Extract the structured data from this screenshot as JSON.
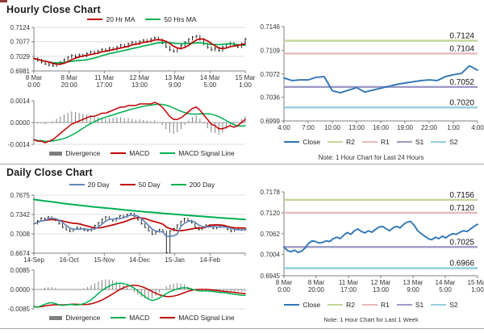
{
  "hourly": {
    "title": "Hourly Close Chart",
    "ma_legend": [
      {
        "label": "20 Hr MA",
        "color": "#c00000"
      },
      {
        "label": "50 Hrs MA",
        "color": "#00b050"
      }
    ],
    "macd_legend": [
      {
        "label": "Divergence",
        "color": "#7f7f7f"
      },
      {
        "label": "MACD",
        "color": "#c00000"
      },
      {
        "label": "MACD Signal Line",
        "color": "#00b050"
      }
    ],
    "pivot_legend": [
      {
        "label": "Close",
        "color": "#2e75b6"
      },
      {
        "label": "R2",
        "color": "#c3d69b"
      },
      {
        "label": "R1",
        "color": "#e6b9b8"
      },
      {
        "label": "S1",
        "color": "#9b9ac6"
      },
      {
        "label": "S2",
        "color": "#93cddd"
      }
    ],
    "pivot_note": "Note: 1 Hour Chart for Last 24 Hours"
  },
  "daily": {
    "title": "Daily Close Chart",
    "ma_legend": [
      {
        "label": "20 Day",
        "color": "#6187b8"
      },
      {
        "label": "50 Day",
        "color": "#c00000"
      },
      {
        "label": "200 Day",
        "color": "#00b050"
      }
    ],
    "macd_legend": [
      {
        "label": "Divergence",
        "color": "#7f7f7f"
      },
      {
        "label": "MACD",
        "color": "#00b050"
      },
      {
        "label": "MACD Signal Line",
        "color": "#c00000"
      }
    ],
    "pivot_legend": [
      {
        "label": "Close",
        "color": "#2e75b6"
      },
      {
        "label": "R2",
        "color": "#c3d69b"
      },
      {
        "label": "R1",
        "color": "#e6b9b8"
      },
      {
        "label": "S1",
        "color": "#9b9ac6"
      },
      {
        "label": "S2",
        "color": "#93cddd"
      }
    ],
    "pivot_note": "Note: 1 Hour Chart for Last 1 Week"
  },
  "chart_data": [
    {
      "id": "hourly-price",
      "type": "price",
      "title": "Hourly Close Chart",
      "yticks": [
        "0.6981",
        "0.7029",
        "0.7077",
        "0.7124"
      ],
      "ylim": [
        0.6981,
        0.7124
      ],
      "x_labels": [
        [
          "8 Mar",
          "0:00"
        ],
        [
          "8 Mar",
          "20:00"
        ],
        [
          "11 Mar",
          "17:00"
        ],
        [
          "12 Mar",
          "13:00"
        ],
        [
          "13 Mar",
          "9:00"
        ],
        [
          "14 Mar",
          "5:00"
        ],
        [
          "15 Mar",
          "1:00"
        ]
      ],
      "close": [
        0.7022,
        0.7016,
        0.701,
        0.7004,
        0.7,
        0.6998,
        0.7004,
        0.701,
        0.7018,
        0.7026,
        0.7032,
        0.7028,
        0.7034,
        0.703,
        0.7038,
        0.7044,
        0.704,
        0.7046,
        0.7052,
        0.7048,
        0.7056,
        0.7052,
        0.706,
        0.7066,
        0.7062,
        0.707,
        0.7075,
        0.707,
        0.7078,
        0.7082,
        0.7078,
        0.7086,
        0.709,
        0.7084,
        0.7072,
        0.706,
        0.705,
        0.7045,
        0.7055,
        0.7065,
        0.7075,
        0.7085,
        0.7092,
        0.7095,
        0.7085,
        0.707,
        0.7058,
        0.705,
        0.7056,
        0.7048,
        0.706,
        0.7068,
        0.7072,
        0.7065,
        0.706,
        0.707,
        0.7086
      ],
      "ma_windows": [
        5,
        13
      ],
      "ma_colors": [
        "#c00000",
        "#00b050"
      ],
      "wick": 0.0004
    },
    {
      "id": "hourly-macd",
      "type": "macd",
      "yticks": [
        "-0.0014",
        "0.0000",
        "0.0014"
      ],
      "ylim": [
        -0.0014,
        0.0014
      ],
      "macd": [
        -0.0011,
        -0.0012,
        -0.0012,
        -0.0013,
        -0.0012,
        -0.0011,
        -0.0009,
        -0.0007,
        -0.0005,
        -0.0003,
        -0.0001,
        0.0,
        0.0001,
        0.0002,
        0.0003,
        0.0004,
        0.0004,
        0.0005,
        0.0006,
        0.0006,
        0.0007,
        0.0008,
        0.0009,
        0.001,
        0.001,
        0.0011,
        0.0011,
        0.0011,
        0.0012,
        0.0012,
        0.0012,
        0.0012,
        0.0013,
        0.0012,
        0.001,
        0.0007,
        0.0004,
        0.0002,
        0.0002,
        0.0003,
        0.0005,
        0.0007,
        0.0009,
        0.001,
        0.0008,
        0.0005,
        0.0002,
        -0.0001,
        -0.0002,
        -0.0004,
        -0.0004,
        -0.0003,
        -0.0002,
        -0.0003,
        -0.0002,
        0.0,
        0.0002
      ],
      "signal_window": 9,
      "macd_color": "#c00000",
      "signal_color": "#00b050",
      "div_color": "#808080"
    },
    {
      "id": "hourly-pivot",
      "type": "pivot",
      "yticks": [
        "0.6999",
        "0.7036",
        "0.7072",
        "0.7109",
        "0.7146"
      ],
      "ylim": [
        0.6999,
        0.7146
      ],
      "x_labels": [
        "4:00",
        "7:00",
        "10:00",
        "13:00",
        "16:00",
        "19:00",
        "22:00",
        "1:00",
        "4:00"
      ],
      "close": [
        0.7066,
        0.7062,
        0.7063,
        0.7063,
        0.7067,
        0.7068,
        0.7046,
        0.7043,
        0.7047,
        0.7051,
        0.7044,
        0.7047,
        0.705,
        0.7053,
        0.7056,
        0.7058,
        0.706,
        0.7062,
        0.7063,
        0.7062,
        0.7068,
        0.7071,
        0.7073,
        0.7085,
        0.7078
      ],
      "close_color": "#2e75b6",
      "pivots": [
        {
          "name": "R2",
          "label": "0.7124",
          "value": 0.7124,
          "color": "#c3d69b"
        },
        {
          "name": "R1",
          "label": "0.7104",
          "value": 0.7104,
          "color": "#e6b9b8"
        },
        {
          "name": "S1",
          "label": "0.7052",
          "value": 0.7052,
          "color": "#9b9ac6"
        },
        {
          "name": "S2",
          "label": "0.7020",
          "value": 0.702,
          "color": "#93cddd"
        }
      ]
    },
    {
      "id": "daily-price",
      "type": "price",
      "title": "Daily Close Chart",
      "yticks": [
        "0.6674",
        "0.7008",
        "0.7342",
        "0.7675"
      ],
      "ylim": [
        0.6674,
        0.7675
      ],
      "x_labels": [
        "14-Sep",
        "16-Oct",
        "15-Nov",
        "14-Dec",
        "15-Jan",
        "14-Feb",
        ""
      ],
      "close": [
        0.718,
        0.723,
        0.728,
        0.726,
        0.73,
        0.727,
        0.724,
        0.718,
        0.712,
        0.708,
        0.705,
        0.709,
        0.712,
        0.71,
        0.707,
        0.706,
        0.709,
        0.715,
        0.72,
        0.726,
        0.73,
        0.726,
        0.723,
        0.728,
        0.732,
        0.73,
        0.734,
        0.736,
        0.731,
        0.725,
        0.718,
        0.712,
        0.706,
        0.7,
        0.704,
        0.708,
        0.705,
        0.668,
        0.706,
        0.71,
        0.716,
        0.722,
        0.727,
        0.724,
        0.72,
        0.712,
        0.708,
        0.713,
        0.716,
        0.714,
        0.71,
        0.712,
        0.715,
        0.713,
        0.708,
        0.705,
        0.708,
        0.71,
        0.707,
        0.709
      ],
      "ma_windows": [
        4,
        12
      ],
      "ma_colors": [
        "#6187b8",
        "#c00000"
      ],
      "ma200": [
        0.76,
        0.756,
        0.752,
        0.7485,
        0.7455,
        0.7425,
        0.7395,
        0.737,
        0.7345,
        0.732,
        0.7298,
        0.7275,
        0.7255
      ],
      "ma200_color": "#00b050",
      "wick": 0.0012
    },
    {
      "id": "daily-macd",
      "type": "macd",
      "yticks": [
        "-0.0085",
        "0.0000",
        "0.0085"
      ],
      "ylim": [
        -0.0085,
        0.0085
      ],
      "macd": [
        -0.0075,
        -0.0078,
        -0.0072,
        -0.0065,
        -0.006,
        -0.0058,
        -0.0062,
        -0.0068,
        -0.007,
        -0.0068,
        -0.0066,
        -0.0067,
        -0.0068,
        -0.0066,
        -0.0062,
        -0.0055,
        -0.0045,
        -0.0032,
        -0.0018,
        -0.0005,
        0.0006,
        0.0015,
        0.0021,
        0.0026,
        0.0028,
        0.0026,
        0.0022,
        0.0015,
        0.0006,
        -0.0006,
        -0.002,
        -0.0032,
        -0.0042,
        -0.0048,
        -0.0045,
        -0.0038,
        -0.0028,
        -0.0018,
        -0.001,
        -0.0004,
        0.0002,
        0.0006,
        0.0008,
        0.0006,
        0.0002,
        -0.0003,
        -0.0006,
        -0.0007,
        -0.0006,
        -0.0007,
        -0.0009,
        -0.0011,
        -0.0013,
        -0.0014,
        -0.0016,
        -0.0019,
        -0.0021,
        -0.0023,
        -0.0025,
        -0.0026
      ],
      "signal_window": 9,
      "macd_color": "#00b050",
      "signal_color": "#c00000",
      "div_color": "#808080"
    },
    {
      "id": "daily-pivot",
      "type": "pivot",
      "yticks": [
        "0.6945",
        "0.7004",
        "0.7062",
        "0.7120",
        "0.7178"
      ],
      "ylim": [
        0.6945,
        0.7178
      ],
      "x_labels": [
        [
          "8 Mar",
          "0:00"
        ],
        [
          "8 Mar",
          "20:00"
        ],
        [
          "11 Mar",
          "17:00"
        ],
        [
          "12 Mar",
          "13:00"
        ],
        [
          "13 Mar",
          "9:00"
        ],
        [
          "14 Mar",
          "5:00"
        ],
        [
          "15 Mar",
          "1:00"
        ]
      ],
      "close": [
        0.7025,
        0.7015,
        0.7012,
        0.7016,
        0.701,
        0.7013,
        0.7022,
        0.7035,
        0.7042,
        0.704,
        0.7036,
        0.7038,
        0.7042,
        0.704,
        0.7048,
        0.7052,
        0.7048,
        0.7058,
        0.7065,
        0.706,
        0.707,
        0.7075,
        0.7068,
        0.7064,
        0.707,
        0.7066,
        0.7074,
        0.708,
        0.7082,
        0.7076,
        0.707,
        0.7078,
        0.7082,
        0.7078,
        0.7088,
        0.7094,
        0.7096,
        0.7085,
        0.707,
        0.7062,
        0.7055,
        0.7048,
        0.7045,
        0.7052,
        0.7048,
        0.7055,
        0.705,
        0.7058,
        0.7062,
        0.706,
        0.7066,
        0.707,
        0.7068,
        0.7075,
        0.7082,
        0.7088
      ],
      "close_color": "#2e75b6",
      "pivots": [
        {
          "name": "R2",
          "label": "0.7156",
          "value": 0.7156,
          "color": "#c3d69b"
        },
        {
          "name": "R1",
          "label": "0.7120",
          "value": 0.712,
          "color": "#e6b9b8"
        },
        {
          "name": "S1",
          "label": "0.7025",
          "value": 0.7025,
          "color": "#9b9ac6"
        },
        {
          "name": "S2",
          "label": "0.6966",
          "value": 0.6966,
          "color": "#93cddd"
        }
      ]
    }
  ]
}
